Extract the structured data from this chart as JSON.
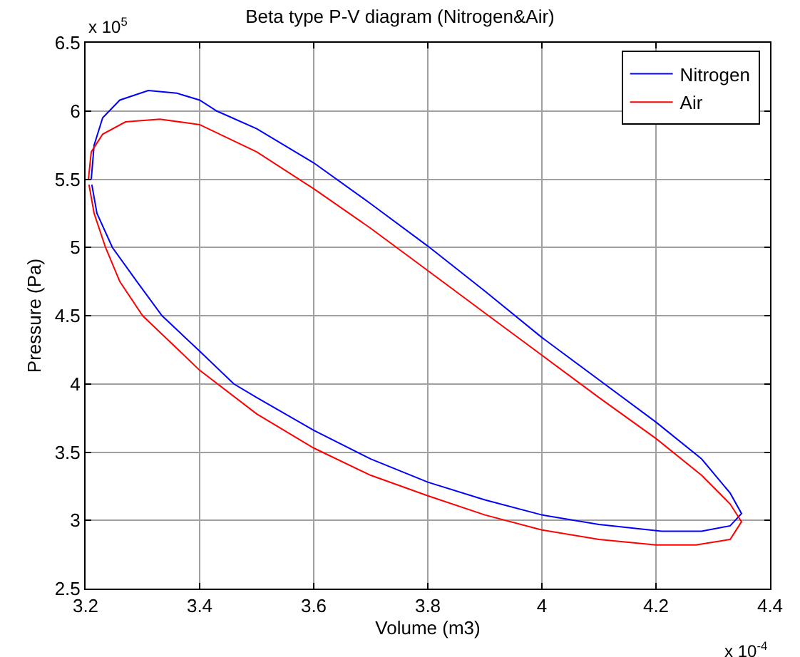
{
  "chart_data": {
    "type": "line",
    "title": "Beta type P-V diagram (Nitrogen&Air)",
    "xlabel": "Volume (m3)",
    "ylabel": "Pressure (Pa)",
    "annotations": [
      "x 10$^{5}$",
      "x 10$^{-4}$"
    ],
    "xlim": [
      3.2,
      4.4
    ],
    "xticks": [
      3.2,
      3.4,
      3.6,
      3.8,
      {
        "value": 4.0,
        "label": "4"
      },
      4.2,
      4.4
    ],
    "ylim": [
      2.5,
      6.5
    ],
    "yticks": [
      2.5,
      {
        "value": 3.0,
        "label": "3"
      },
      3.5,
      {
        "value": 4.0,
        "label": "4"
      },
      4.5,
      {
        "value": 5.0,
        "label": "5"
      },
      5.5,
      {
        "value": 6.0,
        "label": "6"
      },
      6.5
    ],
    "grid": true,
    "legend": "top right",
    "marker": "none",
    "line_style": "solid",
    "series": [
      {
        "name": "Nitrogen",
        "color": "#0000ff",
        "x": [
          3.21,
          3.215,
          3.23,
          3.26,
          3.31,
          3.36,
          3.4,
          3.43,
          3.5,
          3.6,
          3.7,
          3.8,
          3.9,
          4.0,
          4.1,
          4.2,
          4.28,
          4.33,
          4.35,
          4.33,
          4.28,
          4.21,
          4.1,
          4.0,
          3.9,
          3.8,
          3.7,
          3.6,
          3.5,
          3.46,
          3.4,
          3.334,
          3.29,
          3.247,
          3.22,
          3.211
        ],
        "values": [
          5.5,
          5.75,
          5.95,
          6.08,
          6.15,
          6.13,
          6.08,
          6.0,
          5.87,
          5.62,
          5.32,
          5.01,
          4.68,
          4.34,
          4.03,
          3.72,
          3.45,
          3.2,
          3.05,
          2.96,
          2.92,
          2.92,
          2.97,
          3.04,
          3.15,
          3.28,
          3.45,
          3.66,
          3.9,
          4.0,
          4.24,
          4.5,
          4.75,
          5.0,
          5.25,
          5.46
        ]
      },
      {
        "name": "Air",
        "color": "#ff0000",
        "x": [
          3.205,
          3.21,
          3.23,
          3.27,
          3.33,
          3.4,
          3.5,
          3.6,
          3.7,
          3.8,
          3.9,
          4.0,
          4.1,
          4.2,
          4.28,
          4.33,
          4.35,
          4.33,
          4.27,
          4.2,
          4.1,
          4.0,
          3.9,
          3.8,
          3.7,
          3.6,
          3.5,
          3.4,
          3.35,
          3.3,
          3.26,
          3.235,
          3.215,
          3.206
        ],
        "values": [
          5.5,
          5.7,
          5.83,
          5.92,
          5.94,
          5.9,
          5.7,
          5.43,
          5.14,
          4.83,
          4.52,
          4.21,
          3.9,
          3.6,
          3.33,
          3.12,
          2.99,
          2.86,
          2.82,
          2.82,
          2.86,
          2.93,
          3.04,
          3.18,
          3.33,
          3.53,
          3.78,
          4.1,
          4.3,
          4.5,
          4.75,
          5.0,
          5.25,
          5.46
        ]
      }
    ]
  }
}
